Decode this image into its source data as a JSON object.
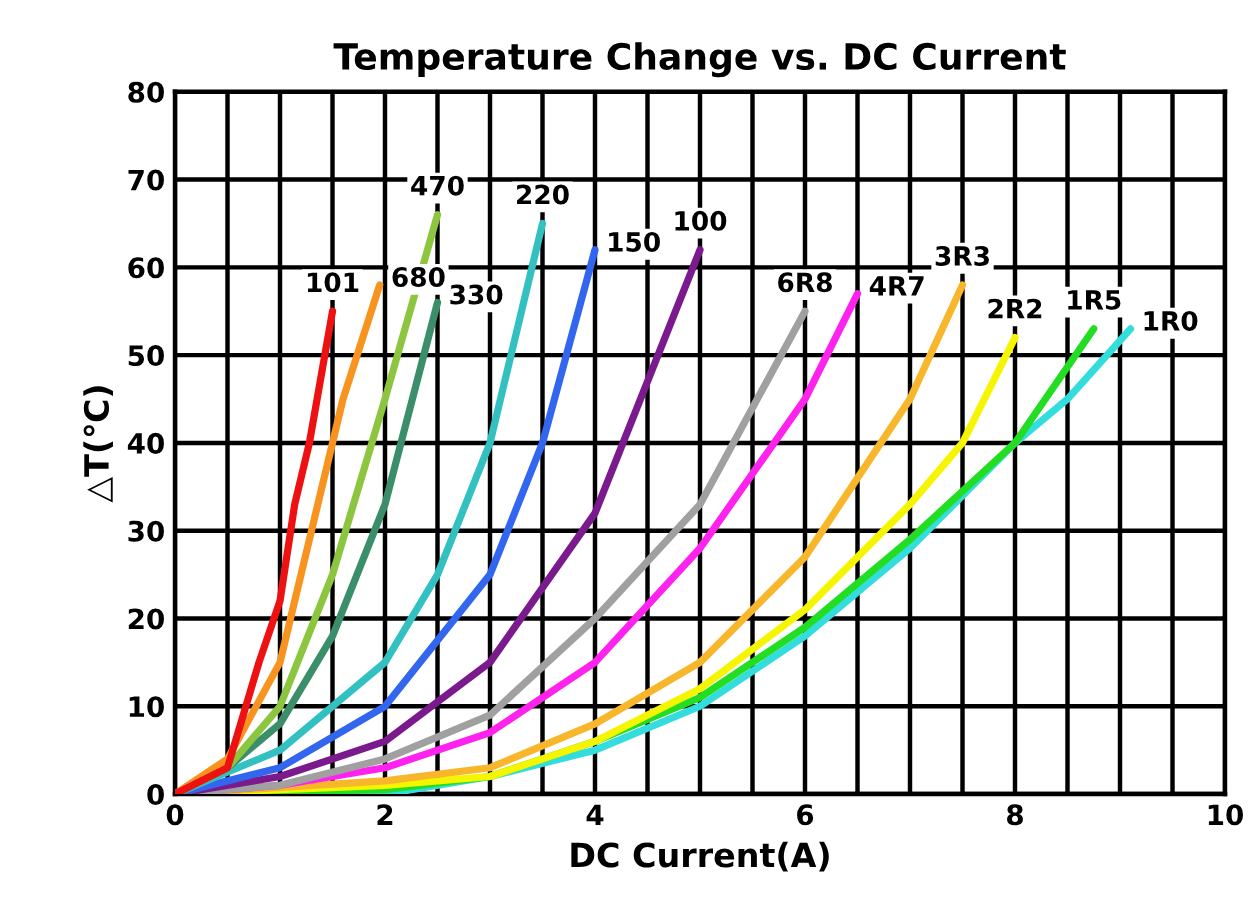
{
  "chart_data": {
    "type": "line",
    "title": "Temperature Change vs. DC Current",
    "xlabel": "DC Current(A)",
    "ylabel": "△T(℃)",
    "xlim": [
      0,
      10
    ],
    "ylim": [
      0,
      80
    ],
    "xticks": [
      0,
      {
        "value": 0.5,
        "label": null
      },
      2,
      {
        "value": 1,
        "label": null
      },
      {
        "value": 1.5,
        "label": null
      },
      {
        "value": 2.5,
        "label": null
      },
      {
        "value": 3,
        "label": null
      },
      {
        "value": 3.5,
        "label": null
      },
      4,
      {
        "value": 4.5,
        "label": null
      },
      {
        "value": 5,
        "label": null
      },
      {
        "value": 5.5,
        "label": null
      },
      6,
      {
        "value": 6.5,
        "label": null
      },
      {
        "value": 7,
        "label": null
      },
      {
        "value": 7.5,
        "label": null
      },
      8,
      {
        "value": 8.5,
        "label": null
      },
      {
        "value": 9,
        "label": null
      },
      {
        "value": 9.5,
        "label": null
      },
      10
    ],
    "yticks": [
      0,
      10,
      20,
      30,
      40,
      50,
      60,
      70,
      80
    ],
    "grid": true,
    "legend": false,
    "marker": "none",
    "line_style": "solid",
    "series": [
      {
        "name": "101",
        "color": "#ee1111",
        "x": [
          0,
          0.5,
          0.8,
          1.0,
          1.14,
          1.28,
          1.5
        ],
        "values": [
          0,
          3,
          15,
          22,
          33,
          40,
          55
        ]
      },
      {
        "name": "680",
        "color": "#f7931e",
        "x": [
          0,
          0.5,
          1.0,
          1.3,
          1.6,
          1.95
        ],
        "values": [
          0,
          4,
          15,
          30,
          45,
          58
        ]
      },
      {
        "name": "470",
        "color": "#8cc63f",
        "x": [
          0,
          0.5,
          1.0,
          1.5,
          2.0,
          2.5
        ],
        "values": [
          0,
          3,
          10,
          25,
          45,
          66
        ]
      },
      {
        "name": "330",
        "color": "#3a8f6a",
        "x": [
          0,
          0.5,
          1.0,
          1.5,
          2.0,
          2.5
        ],
        "values": [
          0,
          3,
          8,
          18,
          33,
          56
        ]
      },
      {
        "name": "220",
        "color": "#33c0c0",
        "x": [
          0,
          1.0,
          2.0,
          2.5,
          3.0,
          3.5
        ],
        "values": [
          0,
          5,
          15,
          25,
          40,
          65
        ]
      },
      {
        "name": "150",
        "color": "#3366ee",
        "x": [
          0,
          1.0,
          2.0,
          3.0,
          3.5,
          4.0
        ],
        "values": [
          0,
          3,
          10,
          25,
          40,
          62
        ]
      },
      {
        "name": "100",
        "color": "#7b1a8c",
        "x": [
          0,
          1,
          2,
          3,
          4,
          5
        ],
        "values": [
          0,
          2,
          6,
          15,
          32,
          62
        ]
      },
      {
        "name": "6R8",
        "color": "#a0a0a0",
        "x": [
          0,
          1,
          2,
          3,
          4,
          5,
          6
        ],
        "values": [
          0,
          1,
          4,
          9,
          20,
          33,
          55
        ]
      },
      {
        "name": "4R7",
        "color": "#ff22ee",
        "x": [
          0,
          1,
          2,
          3,
          4,
          5,
          6,
          6.5
        ],
        "values": [
          0,
          1,
          3,
          7,
          15,
          28,
          45,
          57
        ]
      },
      {
        "name": "3R3",
        "color": "#f8b62b",
        "x": [
          0,
          2,
          3,
          4,
          5,
          6,
          7,
          7.5
        ],
        "values": [
          0,
          1.5,
          3,
          8,
          15,
          27,
          45,
          58
        ]
      },
      {
        "name": "2R2",
        "color": "#f5f500",
        "x": [
          0,
          2,
          3,
          4,
          5,
          6,
          7,
          7.5,
          8
        ],
        "values": [
          0,
          1,
          2,
          6,
          12,
          21,
          33,
          40,
          52
        ]
      },
      {
        "name": "1R5",
        "color": "#22dd22",
        "x": [
          0,
          2,
          3,
          4,
          5,
          6,
          7,
          8,
          8.75
        ],
        "values": [
          0,
          0.5,
          2,
          6,
          11,
          19,
          29,
          40,
          53
        ]
      },
      {
        "name": "1R0",
        "color": "#33dddd",
        "x": [
          0,
          2,
          3,
          4,
          5,
          6,
          7,
          8,
          8.5,
          9.1
        ],
        "values": [
          0,
          0,
          2,
          5,
          10,
          18,
          28,
          40,
          45,
          53
        ]
      }
    ]
  }
}
